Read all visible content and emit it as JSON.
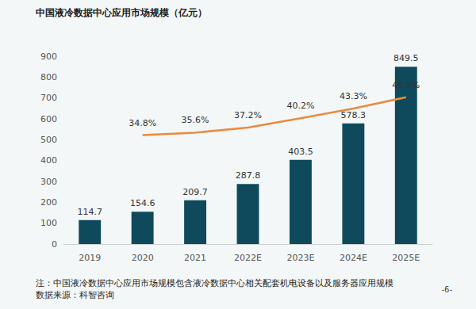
{
  "chart_data": {
    "type": "bar",
    "title": "中国液冷数据中心应用市场规模（亿元）",
    "categories": [
      "2019",
      "2020",
      "2021",
      "2022E",
      "2023E",
      "2024E",
      "2025E"
    ],
    "series": [
      {
        "type": "bar",
        "color": "#0e4a5c",
        "values": [
          114.7,
          154.6,
          209.7,
          287.8,
          403.5,
          578.3,
          849.5
        ]
      },
      {
        "type": "line",
        "axis": "y2",
        "color": "#ea8a3e",
        "marker": "none",
        "values": [
          null,
          34.8,
          35.6,
          37.2,
          40.2,
          43.3,
          46.9
        ],
        "value_labels": [
          null,
          "34.8%",
          "35.6%",
          "37.2%",
          "40.2%",
          "43.3%",
          "46.9%"
        ]
      }
    ],
    "ylim": [
      0,
      900
    ],
    "yticks": [
      0,
      100,
      200,
      300,
      400,
      500,
      600,
      700,
      800,
      900
    ],
    "y2lim": [
      0,
      60
    ],
    "grid": false,
    "data_labels": true,
    "annotations": [
      "注：中国液冷数据中心应用市场规模包含液冷数据中心相关配套机电设备以及服务器应用规模",
      "数据来源：科智咨询",
      "-6-"
    ]
  }
}
